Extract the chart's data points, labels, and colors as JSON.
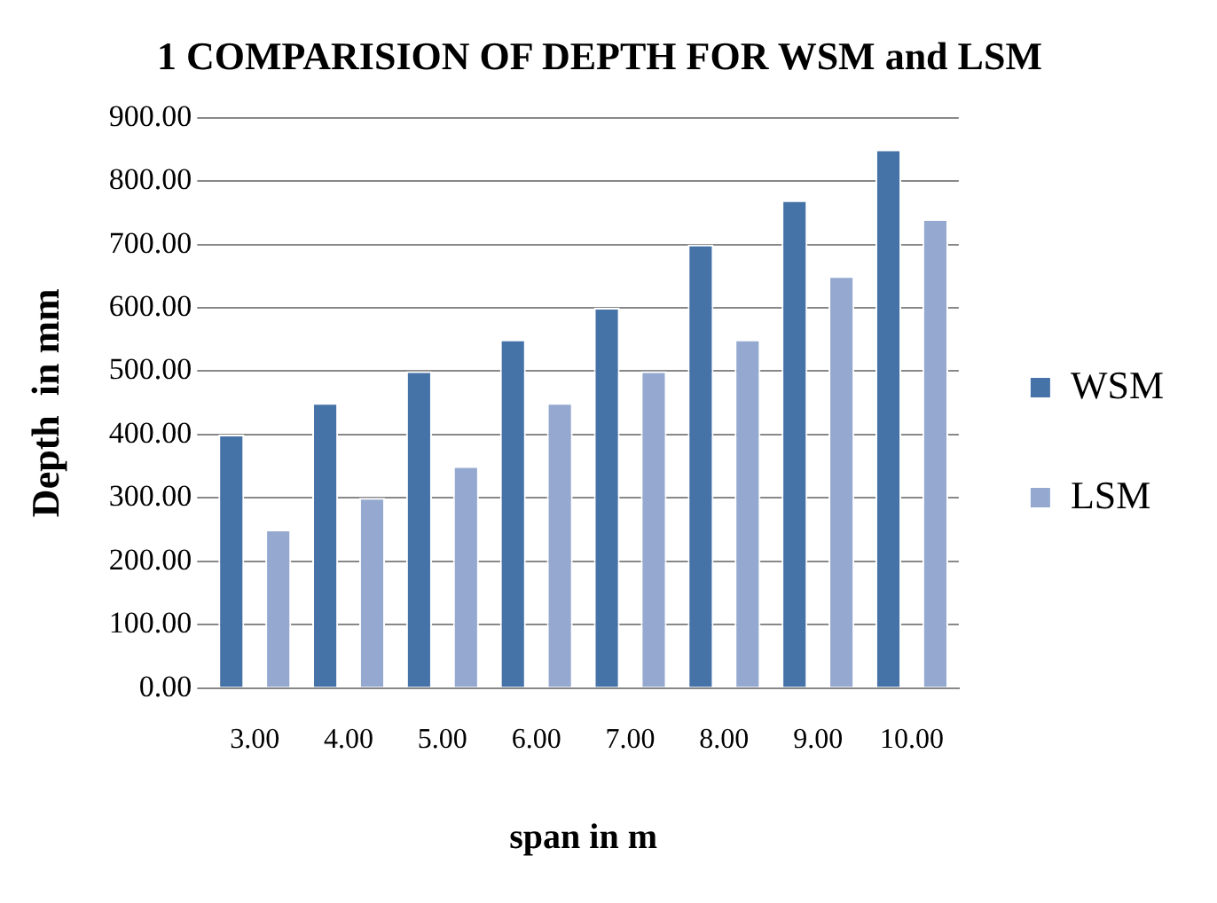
{
  "chart_data": {
    "type": "bar",
    "title": "1 COMPARISION OF DEPTH FOR WSM and LSM",
    "xlabel": "span in m",
    "ylabel": "Depth  in mm",
    "categories": [
      "3.00",
      "4.00",
      "5.00",
      "6.00",
      "7.00",
      "8.00",
      "9.00",
      "10.00"
    ],
    "series": [
      {
        "name": "WSM",
        "color": "#4572a7",
        "values": [
          400,
          450,
          500,
          550,
          600,
          700,
          770,
          850
        ]
      },
      {
        "name": "LSM",
        "color": "#95a9d0",
        "values": [
          250,
          300,
          350,
          450,
          500,
          550,
          650,
          740
        ]
      }
    ],
    "ylim": [
      0,
      900
    ],
    "yticks": [
      {
        "value": 0,
        "label": "0.00"
      },
      {
        "value": 100,
        "label": "100.00"
      },
      {
        "value": 200,
        "label": "200.00"
      },
      {
        "value": 300,
        "label": "300.00"
      },
      {
        "value": 400,
        "label": "400.00"
      },
      {
        "value": 500,
        "label": "500.00"
      },
      {
        "value": 600,
        "label": "600.00"
      },
      {
        "value": 700,
        "label": "700.00"
      },
      {
        "value": 800,
        "label": "800.00"
      },
      {
        "value": 900,
        "label": "900.00"
      }
    ],
    "grid": "y",
    "legend": "right"
  }
}
